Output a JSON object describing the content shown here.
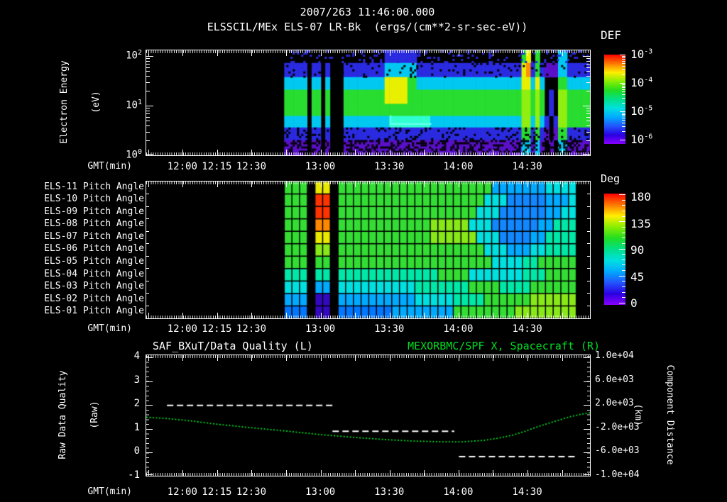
{
  "header": {
    "datetime": "2007/263 11:46:00.000",
    "plot_title": "ELSSCIL/MEx ELS-07 LR-Bk  (ergs/(cm**2-sr-sec-eV))"
  },
  "time_axis": {
    "label": "GMT(min)",
    "start_min": 704,
    "end_min": 897,
    "major_tick_step_min": 15,
    "labeled_ticks": [
      {
        "t": 720,
        "label": "12:00"
      },
      {
        "t": 735,
        "label": "12:15"
      },
      {
        "t": 750,
        "label": "12:30"
      },
      {
        "t": 780,
        "label": "13:00"
      },
      {
        "t": 810,
        "label": "13:30"
      },
      {
        "t": 840,
        "label": "14:00"
      },
      {
        "t": 870,
        "label": "14:30"
      }
    ]
  },
  "top_panel": {
    "y_axis": {
      "title_line1": "Electron Energy",
      "title_line2": "(eV)",
      "ticks": [
        {
          "base": "10",
          "exp": "2"
        },
        {
          "base": "10",
          "exp": "1"
        },
        {
          "base": "10",
          "exp": "0"
        }
      ]
    },
    "colorbar": {
      "title": "DEF",
      "labels": [
        {
          "base": "10",
          "exp": "-3"
        },
        {
          "base": "10",
          "exp": "-4"
        },
        {
          "base": "10",
          "exp": "-5"
        },
        {
          "base": "10",
          "exp": "-6"
        }
      ],
      "gradient": [
        "#ff0000",
        "#ff7700",
        "#ffee00",
        "#88ee00",
        "#22dd22",
        "#00e088",
        "#00e0e0",
        "#00aaff",
        "#2255ff",
        "#2a00e0",
        "#8800ff"
      ]
    }
  },
  "middle_panel": {
    "row_labels": [
      "ELS-11 Pitch Angle",
      "ELS-10 Pitch Angle",
      "ELS-09 Pitch Angle",
      "ELS-08 Pitch Angle",
      "ELS-07 Pitch Angle",
      "ELS-06 Pitch Angle",
      "ELS-05 Pitch Angle",
      "ELS-04 Pitch Angle",
      "ELS-03 Pitch Angle",
      "ELS-02 Pitch Angle",
      "ELS-01 Pitch Angle"
    ],
    "colorbar": {
      "title": "Deg",
      "labels": [
        "180",
        "135",
        "90",
        "45",
        "0"
      ],
      "gradient": [
        "#ff0000",
        "#ff7700",
        "#ffee00",
        "#88ee00",
        "#22dd22",
        "#00e088",
        "#00e0e0",
        "#00aaff",
        "#2255ff",
        "#2a00e0",
        "#8800ff"
      ]
    }
  },
  "bottom_panel": {
    "title_left": "SAF_BXuT/Data Quality (L)",
    "title_right": "MEXORBMC/SPF X, Spacecraft (R)",
    "title_right_color": "#00dd22",
    "left_axis": {
      "title_line1": "Raw Data Quality",
      "title_line2": "(Raw)",
      "ticks": [
        "4",
        "3",
        "2",
        "1",
        "0",
        "-1"
      ],
      "max": 4,
      "min": -1
    },
    "right_axis": {
      "title_line1": "Component Distance",
      "title_line2": "(km)",
      "ticks": [
        "1.0e+04",
        "6.0e+03",
        "2.0e+03",
        "-2.0e+03",
        "-6.0e+03",
        "-1.0e+04"
      ],
      "max": 10000,
      "min": -10000
    }
  },
  "chart_data": [
    {
      "id": "electron_energy_spectrogram",
      "type": "heatmap",
      "title": "ELSSCIL/MEx ELS-07 LR-Bk",
      "units": "ergs/(cm**2-sr-sec-eV)",
      "x_range_gmt": [
        "11:44",
        "14:57"
      ],
      "data_t_range_min": [
        764,
        897
      ],
      "y_log10_ev_range": [
        0,
        2.11
      ],
      "color_log10_range": [
        -6,
        -3
      ],
      "row_fracs": [
        0.12,
        0.135,
        0.12,
        0.135,
        0.115,
        0.11,
        0.12,
        0.145
      ],
      "palette": {
        "K": "#000000",
        "B": "#2a2ae0",
        "C": "#00c8f0",
        "c": "#30ffd0",
        "G": "#28dd30",
        "g": "#90ee10",
        "y": "#e8f000",
        "O": "#ff9000",
        "R": "#ff2800",
        "P": "#5a10c8"
      },
      "grid": [
        "KKKKKKKKKKKKKKKKKKKKKKBBBBBBBKKKKKKKKKKKKKKKKKKKKKKKGyKGKKKKCCKKKKK",
        "BBBBBKBBKBKKKBBBBBBBBBCCCCCCCBBBBBBBBBBBBBBBBBBBBBBByOBGBPPPCCBBBBB",
        "CCCCCKCCKCKKKCCCCCCCCCyyyyyGGCCCCCCCCCCCCCCCCCCCCCCCyyCyCKKKGGCCCCC",
        "GGGGGKGGKGKKKGGGGGGGGGyyyyyGGGGGGGGGGGGGGGGGGGGGGGGGggGgGKBKggGGGGG",
        "GGGGGKGGKGKKKGGGGGGGGGGGGGGGGGGGGGGGGGGGGGGGGGGGGGGGggGgGKBKggGGGGG",
        "CCCCCKCCKCKKKCCCCCCCCCCcccccccccCCCCCCCCCCCCCCCCCCCCggCgCBKBggGGGGG",
        "BBBBBKBBKBKKKBBBBBBBBBBBBBBBBBBBBBBBBBBBBBBBBBBBBBBBGGBGBPKPGGBBBBB",
        "PPPPPKPPKPKKKPPPPPPPPPPPPPPPPPPPPPPPPPPPPPPPPPPPPPPPCCPCPKPKCCPPPPP"
      ],
      "speckle": {
        "0": {
          "mode": "add",
          "color": "#2828d8",
          "p": 0.16
        },
        "1": {
          "mode": "hole",
          "p": 0.1
        },
        "6": {
          "mode": "hole",
          "p": 0.16
        },
        "7": {
          "mode": "hole",
          "p": 0.45
        }
      },
      "features": {
        "hook_line": {
          "t": [
            810,
            828
          ],
          "y_frac": 0.7,
          "color": "#66ffee"
        }
      }
    },
    {
      "id": "pitch_angle_spectrogram",
      "type": "heatmap",
      "rows": [
        "ELS-11",
        "ELS-10",
        "ELS-09",
        "ELS-08",
        "ELS-07",
        "ELS-06",
        "ELS-05",
        "ELS-04",
        "ELS-03",
        "ELS-02",
        "ELS-01"
      ],
      "value_unit": "deg",
      "color_range_deg": [
        0,
        180
      ],
      "data_t_range_min": [
        764,
        891
      ],
      "palette": {
        "K": "#000000",
        "N": "#0077ff",
        "A": "#00aaff",
        "B": "#1188ff",
        "C": "#00e0e0",
        "c": "#00e8a8",
        "G": "#33dd33",
        "g": "#88e818",
        "y": "#e8e800",
        "O": "#ff8800",
        "R": "#ff3300",
        "V": "#3308c0"
      },
      "grid": [
        "GGGKyyKGGGGGGGGGGGGGGGGGGGGAAAAAAACCCC",
        "GGGKRRKGGGGGGGGGGGGGGGGGGGCCCBBBBBAAAC",
        "GGGKRRKGGGGGGGGGGGGGGGGGGCCCBBBBBBAACC",
        "GGGKOOKGGGGGGGGGGGGgggggCCCBBBBBBAAccc",
        "GGGKyyKGGGGGGGGGGGGggggggCCCBBBBAAcccc",
        "GGGKggKGGGGGGGGGGGGGGGGGGGCCCAAACCcccc",
        "GGGKGGKGGGGGGGGGGGGGGGGGGGGCCCCccGGGGG",
        "cccKccKcccccccccccccGGGGCCCCCCCcccGGGG",
        "CCCKAAKCCCCCCCCCCcccccccGGGGccccGGGGGG",
        "AAAKVVKAAAAAAAAAACCCCCccccGGGGGGgggggg",
        "NNNKVVKNNNNNNNAAAAAAAAGGGGGGGGgggggggg"
      ]
    },
    {
      "id": "quality_and_distance",
      "type": "line",
      "x_unit": "minutes GMT",
      "x_range_min": [
        704,
        897
      ],
      "left_ylim": [
        -1,
        4
      ],
      "right_ylim": [
        -10000,
        10000
      ],
      "series": [
        {
          "name": "SAF_BXuT/Data Quality (L)",
          "axis": "left",
          "color": "#ffffff",
          "style": "dashed_segments",
          "segments": [
            {
              "value": 1.98,
              "t": [
                713,
                785
              ]
            },
            {
              "value": 0.9,
              "t": [
                785,
                838
              ]
            },
            {
              "value": -0.17,
              "t": [
                840,
                891
              ]
            }
          ]
        },
        {
          "name": "MEXORBMC/SPF X, Spacecraft (R)",
          "axis": "right",
          "color": "#00dd22",
          "style": "dotted",
          "points": [
            [
              704,
              -60
            ],
            [
              712,
              -240
            ],
            [
              722,
              -600
            ],
            [
              734,
              -1190
            ],
            [
              749,
              -1790
            ],
            [
              765,
              -2380
            ],
            [
              780,
              -2980
            ],
            [
              795,
              -3450
            ],
            [
              808,
              -3810
            ],
            [
              820,
              -4050
            ],
            [
              832,
              -4170
            ],
            [
              842,
              -4170
            ],
            [
              851,
              -3930
            ],
            [
              857,
              -3570
            ],
            [
              863,
              -3100
            ],
            [
              869,
              -2380
            ],
            [
              875,
              -1550
            ],
            [
              882,
              -710
            ],
            [
              888,
              -10
            ],
            [
              892,
              360
            ],
            [
              897,
              710
            ]
          ]
        }
      ]
    }
  ]
}
